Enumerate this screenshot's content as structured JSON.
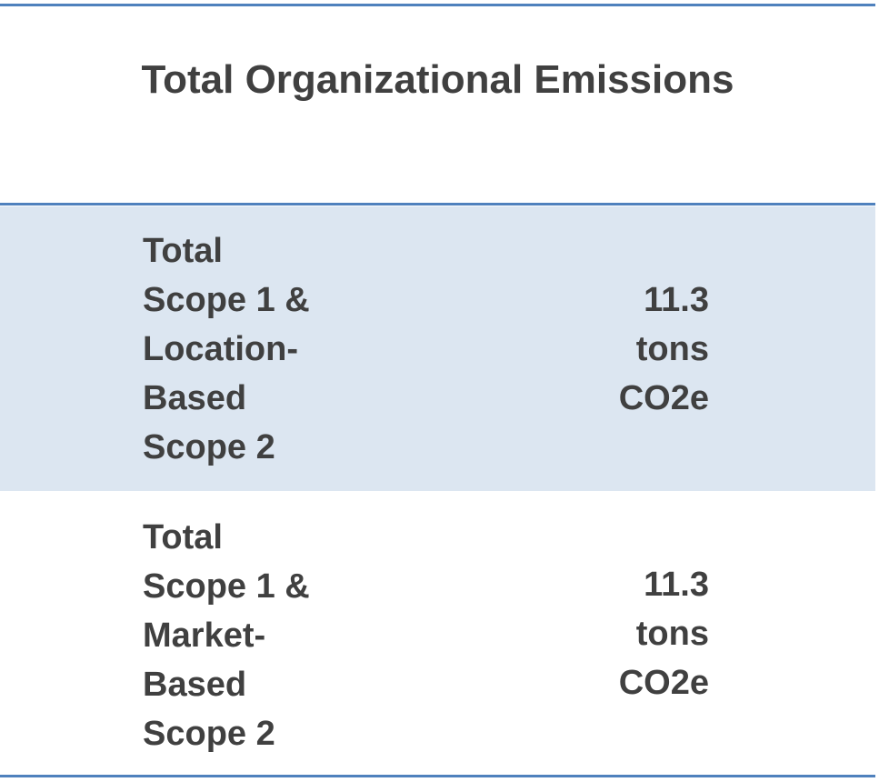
{
  "table": {
    "title": "Total Organizational Emissions",
    "rows": [
      [
        "Total Scope 1 & Location-Based Scope 2",
        "11.3 tons CO2e"
      ],
      [
        "Total Scope 1 & Market-Based Scope 2",
        "11.3 tons CO2e"
      ]
    ]
  }
}
